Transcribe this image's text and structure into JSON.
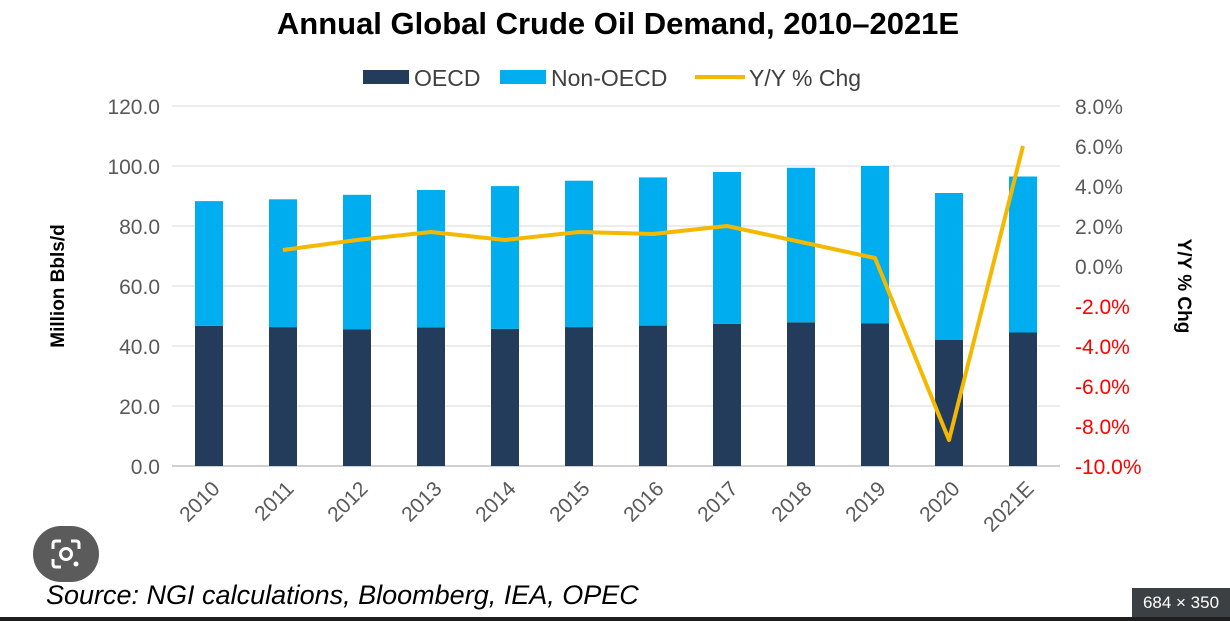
{
  "chart_data": {
    "type": "bar",
    "title": "Annual Global Crude Oil Demand, 2010–2021E",
    "categories": [
      "2010",
      "2011",
      "2012",
      "2013",
      "2014",
      "2015",
      "2016",
      "2017",
      "2018",
      "2019",
      "2020",
      "2021E"
    ],
    "series": [
      {
        "name": "OECD",
        "kind": "stacked-bar",
        "axis": "left",
        "color": "#243c5c",
        "values": [
          46.7,
          46.3,
          45.6,
          46.2,
          45.7,
          46.3,
          46.8,
          47.4,
          47.9,
          47.5,
          42.0,
          44.5
        ]
      },
      {
        "name": "Non-OECD",
        "kind": "stacked-bar",
        "axis": "left",
        "color": "#00aeef",
        "values": [
          41.6,
          42.6,
          44.8,
          45.8,
          47.6,
          48.8,
          49.4,
          50.6,
          51.5,
          52.5,
          49.0,
          52.0
        ]
      },
      {
        "name": "Y/Y % Chg",
        "kind": "line",
        "axis": "right",
        "color": "#f5b800",
        "values": [
          null,
          0.8,
          1.3,
          1.7,
          1.3,
          1.7,
          1.6,
          2.0,
          1.2,
          0.4,
          -8.7,
          6.0
        ]
      }
    ],
    "ylabel": "Million Bbls/d",
    "y2label": "Y/Y % Chg",
    "ylim": [
      0,
      120
    ],
    "yticks": [
      "0.0",
      "20.0",
      "40.0",
      "60.0",
      "80.0",
      "100.0",
      "120.0"
    ],
    "y2lim": [
      -10,
      8
    ],
    "y2ticks": [
      "-10.0%",
      "-8.0%",
      "-6.0%",
      "-4.0%",
      "-2.0%",
      "0.0%",
      "2.0%",
      "4.0%",
      "6.0%",
      "8.0%"
    ],
    "y2_negative_color": "#ff0000",
    "grid": "horizontal",
    "legend_position": "top",
    "source": "Source: NGI calculations, Bloomberg, IEA, OPEC"
  },
  "overlay": {
    "lens_icon": "google-lens-icon",
    "dimensions_badge": "684 × 350"
  }
}
